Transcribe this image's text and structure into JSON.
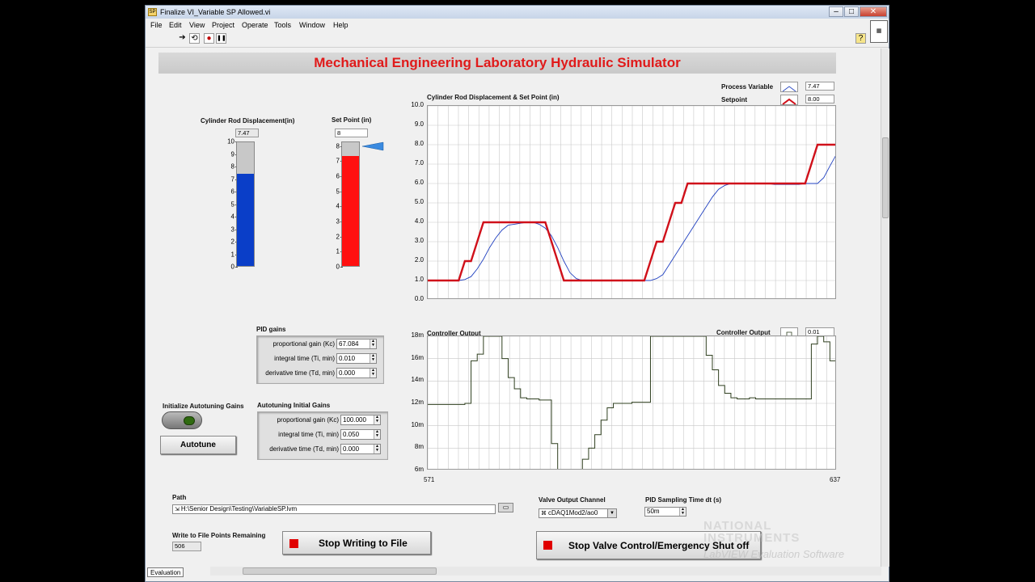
{
  "window": {
    "title": "Finalize VI_Variable SP Allowed.vi",
    "icon": "labview-vi-icon",
    "min": "–",
    "max": "□",
    "close": "✕"
  },
  "menu": [
    "File",
    "Edit",
    "View",
    "Project",
    "Operate",
    "Tools",
    "Window",
    "Help"
  ],
  "toolbar": {
    "run": "➔",
    "run_continuous": "⟲",
    "abort": "●",
    "pause": "❚❚",
    "help": "?"
  },
  "banner": "Mechanical Engineering Laboratory Hydraulic Simulator",
  "displacement": {
    "label": "Cylinder Rod Displacement(in)",
    "value": "7.47",
    "level": 7.47,
    "max": 10,
    "ticks": [
      "10",
      "9",
      "8",
      "7",
      "6",
      "5",
      "4",
      "3",
      "2",
      "1",
      "0"
    ],
    "color": "#0a3ec8"
  },
  "setpoint": {
    "label": "Set Point (in)",
    "value": "8",
    "level": 7.4,
    "pointer": 8,
    "ticks": [
      "8",
      "7",
      "6",
      "5",
      "4",
      "3",
      "2",
      "1",
      "0"
    ],
    "color": "#ff1010",
    "pointer_color": "#3a8ae0"
  },
  "chart_data": [
    {
      "type": "line",
      "title": "Cylinder Rod Displacement & Set Point (in)",
      "ylim": [
        0,
        10
      ],
      "y_ticks": [
        "10.0",
        "9.0",
        "8.0",
        "7.0",
        "6.0",
        "5.0",
        "4.0",
        "3.0",
        "2.0",
        "1.0",
        "0.0"
      ],
      "grid": true,
      "legend_position": "top-right",
      "x": [
        0,
        1,
        2,
        3,
        4,
        5,
        6,
        7,
        8,
        9,
        10,
        11,
        12,
        13,
        14,
        15,
        16,
        17,
        18,
        19,
        20,
        21,
        22,
        23,
        24,
        25,
        26,
        27,
        28,
        29,
        30,
        31,
        32,
        33,
        34,
        35,
        36,
        37,
        38,
        39,
        40,
        41,
        42,
        43,
        44,
        45,
        46,
        47,
        48,
        49,
        50,
        51,
        52,
        53,
        54,
        55,
        56,
        57,
        58,
        59,
        60,
        61,
        62,
        63,
        64,
        65,
        66
      ],
      "series": [
        {
          "name": "Process Variable",
          "legend_value": "7.47",
          "color": "#2040c0",
          "values": [
            1.0,
            1.0,
            1.0,
            1.0,
            1.0,
            1.0,
            1.05,
            1.2,
            1.6,
            2.1,
            2.7,
            3.2,
            3.6,
            3.85,
            3.9,
            3.95,
            4.0,
            4.0,
            3.9,
            3.7,
            3.3,
            2.7,
            2.0,
            1.4,
            1.1,
            1.0,
            1.0,
            1.0,
            1.0,
            1.0,
            1.0,
            1.0,
            1.0,
            1.0,
            1.0,
            1.0,
            1.0,
            1.1,
            1.3,
            1.8,
            2.3,
            2.8,
            3.3,
            3.8,
            4.3,
            4.8,
            5.3,
            5.7,
            5.9,
            6.0,
            6.0,
            6.0,
            6.0,
            6.0,
            6.0,
            6.0,
            5.95,
            5.95,
            5.95,
            5.95,
            5.95,
            6.0,
            6.0,
            6.0,
            6.3,
            6.9,
            7.47
          ]
        },
        {
          "name": "Setpoint",
          "legend_value": "8.00",
          "color": "#d0101a",
          "values": [
            1.0,
            1.0,
            1.0,
            1.0,
            1.0,
            1.0,
            2.0,
            2.0,
            3.0,
            4.0,
            4.0,
            4.0,
            4.0,
            4.0,
            4.0,
            4.0,
            4.0,
            4.0,
            4.0,
            4.0,
            3.0,
            2.0,
            1.0,
            1.0,
            1.0,
            1.0,
            1.0,
            1.0,
            1.0,
            1.0,
            1.0,
            1.0,
            1.0,
            1.0,
            1.0,
            1.0,
            2.0,
            3.0,
            3.0,
            4.0,
            5.0,
            5.0,
            6.0,
            6.0,
            6.0,
            6.0,
            6.0,
            6.0,
            6.0,
            6.0,
            6.0,
            6.0,
            6.0,
            6.0,
            6.0,
            6.0,
            6.0,
            6.0,
            6.0,
            6.0,
            6.0,
            6.0,
            7.0,
            8.0,
            8.0,
            8.0,
            8.0
          ]
        }
      ]
    },
    {
      "type": "line",
      "title": "Controller Output",
      "ylim": [
        6,
        18
      ],
      "y_ticks": [
        "18m",
        "16m",
        "14m",
        "12m",
        "10m",
        "8m",
        "6m"
      ],
      "x_ticks": [
        "571",
        "637"
      ],
      "xlim": [
        571,
        637
      ],
      "grid": true,
      "legend_position": "top-right",
      "x": [
        571,
        572,
        573,
        574,
        575,
        576,
        577,
        578,
        579,
        580,
        581,
        582,
        583,
        584,
        585,
        586,
        587,
        588,
        589,
        590,
        591,
        592,
        593,
        594,
        595,
        596,
        597,
        598,
        599,
        600,
        601,
        602,
        603,
        604,
        605,
        606,
        607,
        608,
        609,
        610,
        611,
        612,
        613,
        614,
        615,
        616,
        617,
        618,
        619,
        620,
        621,
        622,
        623,
        624,
        625,
        626,
        627,
        628,
        629,
        630,
        631,
        632,
        633,
        634,
        635,
        636,
        637
      ],
      "series": [
        {
          "name": "Controller Output",
          "legend_value": "0.01",
          "color": "#304020",
          "values": [
            11.9,
            11.9,
            11.9,
            11.9,
            11.9,
            11.9,
            12.0,
            15.8,
            16.4,
            18.0,
            18.0,
            18.0,
            16.0,
            14.3,
            13.3,
            12.5,
            12.4,
            12.4,
            12.3,
            12.3,
            8.4,
            6.0,
            6.0,
            6.0,
            6.0,
            7.0,
            8.0,
            9.2,
            10.5,
            11.6,
            12.0,
            12.0,
            12.0,
            12.1,
            12.1,
            12.1,
            18.0,
            18.0,
            18.0,
            18.0,
            18.0,
            18.0,
            18.0,
            18.0,
            18.0,
            16.3,
            15.0,
            13.6,
            12.9,
            12.5,
            12.4,
            12.4,
            12.5,
            12.4,
            12.4,
            12.4,
            12.4,
            12.4,
            12.4,
            12.4,
            12.4,
            12.4,
            17.3,
            18.0,
            17.5,
            15.8,
            14.3
          ]
        }
      ]
    }
  ],
  "pid": {
    "title": "PID gains",
    "rows": [
      {
        "label": "proportional gain (Kc)",
        "value": "67.084"
      },
      {
        "label": "integral time (Ti, min)",
        "value": "0.010"
      },
      {
        "label": "derivative time (Td, min)",
        "value": "0.000"
      }
    ]
  },
  "autotune_init": {
    "title": "Autotuning Initial Gains",
    "rows": [
      {
        "label": "proportional gain (Kc)",
        "value": "100.000"
      },
      {
        "label": "integral time (Ti, min)",
        "value": "0.050"
      },
      {
        "label": "derivative time (Td, min)",
        "value": "0.000"
      }
    ]
  },
  "autotune": {
    "init_label": "Initialize Autotuning Gains",
    "button": "Autotune"
  },
  "path": {
    "label": "Path",
    "value": "H:\\Senior Design\\Testing\\VariableSP.lvm"
  },
  "points": {
    "label": "Write to File Points Remaining",
    "value": "506"
  },
  "stop_writing": "Stop Writing to File",
  "valve": {
    "label": "Valve Output Channel",
    "value": "cDAQ1Mod2/ao0"
  },
  "sampling": {
    "label": "PID Sampling Time dt (s)",
    "value": "50m"
  },
  "stop_valve": "Stop Valve Control/Emergency Shut off",
  "watermark": {
    "line1": "NATIONAL",
    "line2": "INSTRUMENTS",
    "sub": "LabVIEW Evaluation Software"
  },
  "status": "Evaluation"
}
